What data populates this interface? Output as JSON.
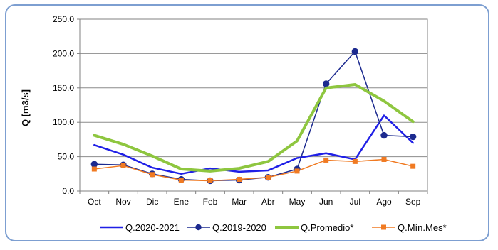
{
  "chart_data": {
    "type": "line",
    "title": "",
    "xlabel": "",
    "ylabel": "Q [m3/s]",
    "ylim": [
      0,
      250
    ],
    "grid": true,
    "legend_position": "bottom",
    "categories": [
      "Oct",
      "Nov",
      "Dic",
      "Ene",
      "Feb",
      "Mar",
      "Abr",
      "May",
      "Jun",
      "Jul",
      "Ago",
      "Sep"
    ],
    "yticks": [
      "0.0",
      "50.0",
      "100.0",
      "150.0",
      "200.0",
      "250.0"
    ],
    "yticks_values": [
      0,
      50,
      100,
      150,
      200,
      250
    ],
    "series": [
      {
        "name": "Q.2020-2021",
        "color": "#1f1fe6",
        "marker": "none",
        "width": 2.5,
        "values": [
          67,
          53,
          34,
          25,
          33,
          28,
          30,
          48,
          55,
          46,
          110,
          70
        ]
      },
      {
        "name": "Q.2019-2020",
        "color": "#1c2a8f",
        "marker": "circle",
        "width": 1.5,
        "values": [
          39,
          38,
          25,
          17,
          15,
          16,
          20,
          32,
          156,
          203,
          81,
          79
        ]
      },
      {
        "name": "Q.Promedio*",
        "color": "#8ec63f",
        "marker": "none",
        "width": 4,
        "values": [
          81,
          68,
          51,
          32,
          29,
          33,
          43,
          73,
          150,
          155,
          131,
          101
        ]
      },
      {
        "name": "Q.Mín.Mes*",
        "color": "#f07a22",
        "marker": "square",
        "width": 1.5,
        "values": [
          32,
          37,
          24,
          16,
          15,
          17,
          20,
          29,
          45,
          43,
          46,
          36
        ]
      }
    ]
  }
}
